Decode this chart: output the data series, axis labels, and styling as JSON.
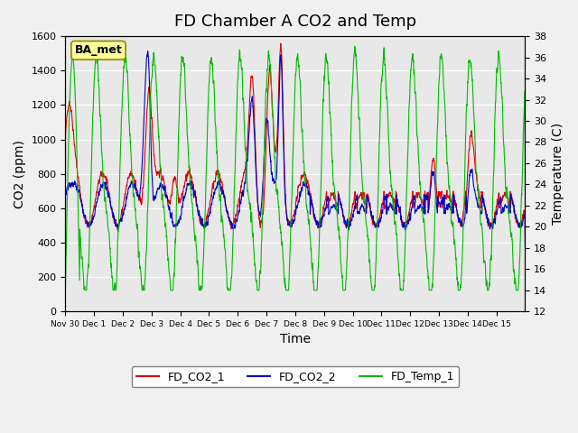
{
  "title": "FD Chamber A CO2 and Temp",
  "xlabel": "Time",
  "ylabel_left": "CO2 (ppm)",
  "ylabel_right": "Temperature (C)",
  "ylim_left": [
    0,
    1600
  ],
  "ylim_right": [
    12,
    38
  ],
  "yticks_left": [
    0,
    200,
    400,
    600,
    800,
    1000,
    1200,
    1400,
    1600
  ],
  "yticks_right": [
    12,
    14,
    16,
    18,
    20,
    22,
    24,
    26,
    28,
    30,
    32,
    34,
    36,
    38
  ],
  "color_co2_1": "#dd0000",
  "color_co2_2": "#0000cc",
  "color_temp": "#00bb00",
  "legend_labels": [
    "FD_CO2_1",
    "FD_CO2_2",
    "FD_Temp_1"
  ],
  "label_box_text": "BA_met",
  "label_box_facecolor": "#ffff99",
  "label_box_edgecolor": "#888800",
  "bg_color": "#e8e8e8",
  "grid_color": "#ffffff",
  "title_fontsize": 13,
  "axis_fontsize": 10,
  "tick_labels": [
    "Nov 30",
    "Dec 1",
    "Dec 2",
    "Dec 3",
    "Dec 4",
    "Dec 5",
    "Dec 6",
    "Dec 7",
    "Dec 8",
    "Dec 9",
    "Dec 10",
    "Dec 11",
    "Dec 12",
    "Dec 13",
    "Dec 14",
    "Dec 15"
  ]
}
